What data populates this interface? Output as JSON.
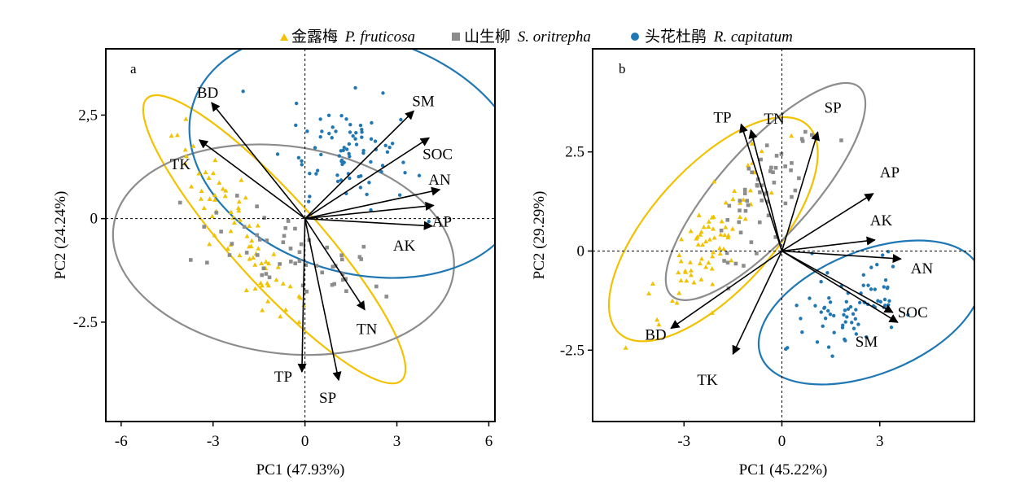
{
  "legend": [
    {
      "label": "金露梅",
      "species": "P. fruticosa",
      "marker": "triangle",
      "color": "#f2c100"
    },
    {
      "label": "山生柳",
      "species": "S. oritrepha",
      "marker": "square",
      "color": "#8c8c8c"
    },
    {
      "label": "头花杜鹃",
      "species": "R. capitatum",
      "marker": "circle",
      "color": "#1f78b4"
    }
  ],
  "chart_data": [
    {
      "type": "scatter",
      "panel_label": "a",
      "xlabel": "PC1 (47.93%)",
      "ylabel": "PC2 (24.24%)",
      "xlim": [
        -6.5,
        6.2
      ],
      "ylim": [
        -4.9,
        4.1
      ],
      "xticks": [
        {
          "v": -6,
          "label": "-6"
        },
        {
          "v": -3,
          "label": "-3"
        },
        {
          "v": 0,
          "label": "0"
        },
        {
          "v": 3,
          "label": "3"
        },
        {
          "v": 6,
          "label": "6"
        }
      ],
      "yticks": [
        {
          "v": 2.5,
          "label": "2,5"
        },
        {
          "v": 0,
          "label": "0"
        },
        {
          "v": -2.5,
          "label": "-2.5"
        }
      ],
      "arrows": [
        {
          "name": "BD",
          "x": -3.05,
          "y": 2.8
        },
        {
          "name": "TK",
          "x": -3.45,
          "y": 1.9
        },
        {
          "name": "SM",
          "x": 3.55,
          "y": 2.6
        },
        {
          "name": "SOC",
          "x": 4.05,
          "y": 1.95
        },
        {
          "name": "AN",
          "x": 4.4,
          "y": 0.7
        },
        {
          "name": "AP",
          "x": 4.2,
          "y": 0.32
        },
        {
          "name": "AK",
          "x": 4.15,
          "y": -0.18
        },
        {
          "name": "TN",
          "x": 1.95,
          "y": -2.2
        },
        {
          "name": "TP",
          "x": -0.1,
          "y": -3.7
        },
        {
          "name": "SP",
          "x": 1.1,
          "y": -3.9
        }
      ],
      "ellipses": [
        {
          "group": "P. fruticosa",
          "cx": -1.0,
          "cy": -0.5,
          "rx": 6.2,
          "ry": 1.05,
          "angle": -48
        },
        {
          "group": "S. oritrepha",
          "cx": -0.7,
          "cy": -0.75,
          "rx": 5.6,
          "ry": 2.5,
          "angle": -8
        },
        {
          "group": "R. capitatum",
          "cx": 1.7,
          "cy": 1.55,
          "rx": 5.6,
          "ry": 2.85,
          "angle": -17
        }
      ],
      "points": {
        "P. fruticosa": {
          "cx": -2.1,
          "cy": -0.4,
          "sd_major": 1.6,
          "sd_minor": 0.35,
          "angle": -50,
          "n": 75
        },
        "S. oritrepha": {
          "cx": -0.6,
          "cy": -0.9,
          "sd_major": 1.6,
          "sd_minor": 0.5,
          "angle": -12,
          "n": 55
        },
        "R. capitatum": {
          "cx": 1.45,
          "cy": 1.7,
          "sd_major": 1.05,
          "sd_minor": 0.65,
          "angle": -10,
          "n": 80
        }
      }
    },
    {
      "type": "scatter",
      "panel_label": "b",
      "xlabel": "PC1 (45.22%)",
      "ylabel": "PC2 (29.29%)",
      "xlim": [
        -5.8,
        5.9
      ],
      "ylim": [
        -4.3,
        5.1
      ],
      "xticks": [
        {
          "v": -3,
          "label": "-3"
        },
        {
          "v": 0,
          "label": "0"
        },
        {
          "v": 3,
          "label": "3"
        }
      ],
      "yticks": [
        {
          "v": 2.5,
          "label": "2.5"
        },
        {
          "v": 0,
          "label": "0"
        },
        {
          "v": -2.5,
          "label": "-2.5"
        }
      ],
      "arrows": [
        {
          "name": "TP",
          "x": -1.25,
          "y": 3.2
        },
        {
          "name": "TN",
          "x": -0.95,
          "y": 3.05
        },
        {
          "name": "SP",
          "x": 1.1,
          "y": 3.0
        },
        {
          "name": "AP",
          "x": 2.8,
          "y": 1.45
        },
        {
          "name": "AK",
          "x": 2.85,
          "y": 0.28
        },
        {
          "name": "AN",
          "x": 3.65,
          "y": -0.2
        },
        {
          "name": "SOC",
          "x": 3.4,
          "y": -1.55
        },
        {
          "name": "SM",
          "x": 3.55,
          "y": -1.8
        },
        {
          "name": "BD",
          "x": -3.4,
          "y": -1.95
        },
        {
          "name": "TK",
          "x": -1.5,
          "y": -2.6
        }
      ],
      "ellipses": [
        {
          "group": "P. fruticosa",
          "cx": -2.1,
          "cy": 0.55,
          "rx": 4.3,
          "ry": 1.55,
          "angle": 48
        },
        {
          "group": "S. oritrepha",
          "cx": -0.5,
          "cy": 1.5,
          "rx": 4.3,
          "ry": 1.15,
          "angle": 48
        },
        {
          "group": "R. capitatum",
          "cx": 2.7,
          "cy": -1.55,
          "rx": 3.6,
          "ry": 1.55,
          "angle": 22
        }
      ],
      "points": {
        "P. fruticosa": {
          "cx": -2.2,
          "cy": 0.3,
          "sd_major": 1.3,
          "sd_minor": 0.38,
          "angle": 48,
          "n": 75
        },
        "S. oritrepha": {
          "cx": -0.6,
          "cy": 1.3,
          "sd_major": 1.2,
          "sd_minor": 0.35,
          "angle": 50,
          "n": 55
        },
        "R. capitatum": {
          "cx": 2.1,
          "cy": -1.5,
          "sd_major": 1.05,
          "sd_minor": 0.55,
          "angle": 25,
          "n": 75
        }
      }
    }
  ]
}
